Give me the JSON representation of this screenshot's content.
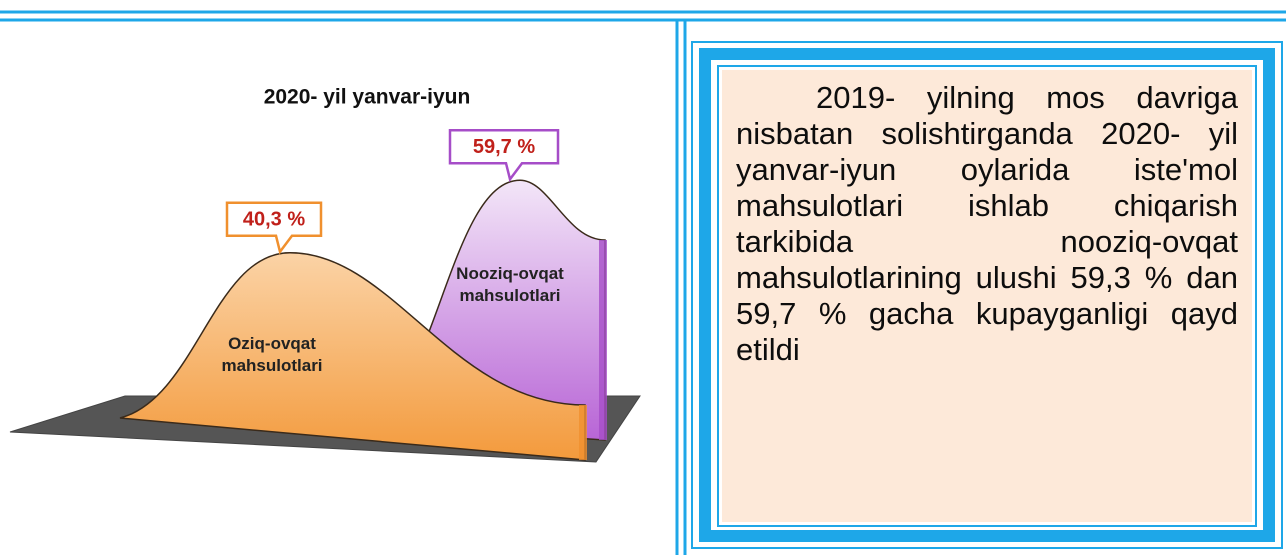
{
  "chart_data": {
    "type": "area",
    "title": "2020- yil yanvar-iyun",
    "categories": [
      "Oziq-ovqat mahsulotlari",
      "Nooziq-ovqat mahsulotlari"
    ],
    "values": [
      40.3,
      59.7
    ],
    "value_labels": [
      "40,3 %",
      "59,7 %"
    ],
    "colors": [
      "#f0902e",
      "#a64dc8"
    ]
  },
  "note": "2019- yilning mos davriga nisbatan solishtirganda 2020- yil yanvar-iyun oylarida iste'mol mahsulotlari ishlab chiqarish tarkibida nooziq-ovqat mahsulotlarining ulushi 59,3 % dan 59,7 % gacha kupayganligi qayd etildi"
}
